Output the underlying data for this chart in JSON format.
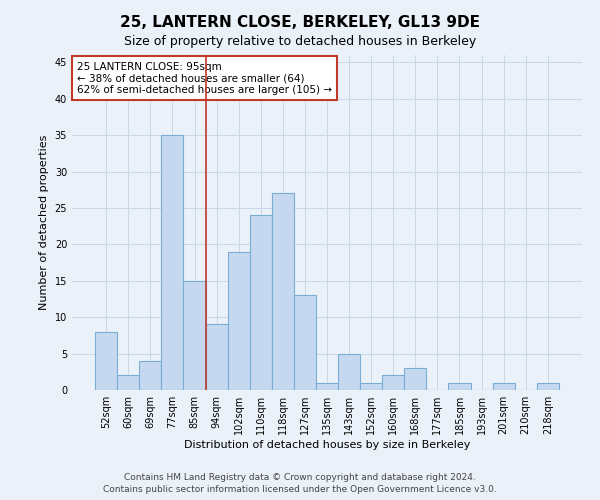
{
  "title": "25, LANTERN CLOSE, BERKELEY, GL13 9DE",
  "subtitle": "Size of property relative to detached houses in Berkeley",
  "xlabel": "Distribution of detached houses by size in Berkeley",
  "ylabel": "Number of detached properties",
  "categories": [
    "52sqm",
    "60sqm",
    "69sqm",
    "77sqm",
    "85sqm",
    "94sqm",
    "102sqm",
    "110sqm",
    "118sqm",
    "127sqm",
    "135sqm",
    "143sqm",
    "152sqm",
    "160sqm",
    "168sqm",
    "177sqm",
    "185sqm",
    "193sqm",
    "201sqm",
    "210sqm",
    "218sqm"
  ],
  "values": [
    8,
    2,
    4,
    35,
    15,
    9,
    19,
    24,
    27,
    13,
    1,
    5,
    1,
    2,
    3,
    0,
    1,
    0,
    1,
    0,
    1
  ],
  "bar_color": "#c5d8f0",
  "bar_edge_color": "#7aadd4",
  "grid_color": "#c8d8e8",
  "background_color": "#eaf1f8",
  "vline_x": 4.5,
  "vline_color": "#c0392b",
  "ylim": [
    0,
    46
  ],
  "yticks": [
    0,
    5,
    10,
    15,
    20,
    25,
    30,
    35,
    40,
    45
  ],
  "annotation_title": "25 LANTERN CLOSE: 95sqm",
  "annotation_line2": "← 38% of detached houses are smaller (64)",
  "annotation_line3": "62% of semi-detached houses are larger (105) →",
  "annotation_box_color": "#c0392b",
  "footer_line1": "Contains HM Land Registry data © Crown copyright and database right 2024.",
  "footer_line2": "Contains public sector information licensed under the Open Government Licence v3.0.",
  "title_fontsize": 11,
  "subtitle_fontsize": 9,
  "axis_label_fontsize": 8,
  "tick_fontsize": 7,
  "annotation_fontsize": 7.5,
  "footer_fontsize": 6.5
}
